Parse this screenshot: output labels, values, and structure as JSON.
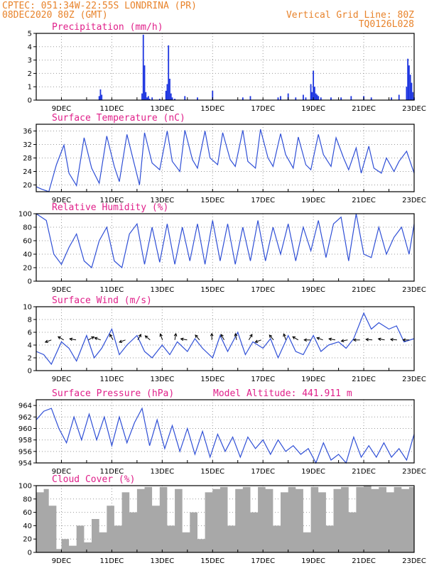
{
  "header": {
    "line1_left": "CPTEC:   051:34W-22:55S   LONDRINA (PR)",
    "line2_left": "08DEC2020 80Z (GMT)",
    "line2_right": "Vertical Grid Line: 80Z",
    "line3_right": "TQ0126L028"
  },
  "x_axis": {
    "day_min": 8.0,
    "day_max": 23.0,
    "ticks": [
      {
        "day": 9,
        "label": "9DEC"
      },
      {
        "day": 11,
        "label": "11DEC"
      },
      {
        "day": 13,
        "label": "13DEC"
      },
      {
        "day": 15,
        "label": "15DEC"
      },
      {
        "day": 17,
        "label": "17DEC"
      },
      {
        "day": 19,
        "label": "19DEC"
      },
      {
        "day": 21,
        "label": "21DEC"
      },
      {
        "day": 23,
        "label": "23DEC"
      }
    ]
  },
  "panels": [
    {
      "id": "precip",
      "title": "Precipitation (mm/h)",
      "ticks": [
        "0",
        "1",
        "2",
        "3",
        "4",
        "5"
      ]
    },
    {
      "id": "temp",
      "title": "Surface Temperature (nC)",
      "ticks": [
        "20",
        "24",
        "28",
        "32",
        "36"
      ]
    },
    {
      "id": "rh",
      "title": "Relative Humidity (%)",
      "ticks": [
        "0",
        "20",
        "40",
        "60",
        "80",
        "100"
      ]
    },
    {
      "id": "wind",
      "title": "Surface Wind (m/s)",
      "ticks": [
        "0",
        "2",
        "4",
        "6",
        "8",
        "10"
      ]
    },
    {
      "id": "pres",
      "title": "Surface Pressure (hPa)",
      "title2": "Model Altitude: 441.911 m",
      "ticks": [
        "954",
        "956",
        "958",
        "960",
        "962",
        "964"
      ]
    },
    {
      "id": "cloud",
      "title": "Cloud Cover (%)",
      "ticks": [
        "0",
        "20",
        "40",
        "60",
        "80",
        "100"
      ]
    }
  ],
  "colors": {
    "header": "#e8832b",
    "title": "#e0208a",
    "line": "#2f4fd6",
    "bar": "#1d35e0",
    "cloud": "#a8a8a8",
    "arrow": "#000000"
  },
  "chart_data": [
    {
      "type": "bar",
      "title": "Precipitation (mm/h)",
      "ylim": [
        0,
        5
      ],
      "series": [
        {
          "x": [
            10.5,
            10.55,
            10.6,
            12.2,
            12.25,
            12.3,
            12.35,
            12.4,
            12.45,
            12.5,
            12.6,
            12.9,
            13.15,
            13.2,
            13.25,
            13.3,
            13.35,
            13.4,
            13.5,
            13.9,
            14.4,
            15.0,
            16.2,
            16.5,
            17.6,
            17.7,
            18.0,
            18.3,
            18.6,
            18.7,
            18.9,
            18.95,
            19.0,
            19.05,
            19.1,
            19.15,
            19.2,
            19.3,
            19.7,
            20.1,
            20.5,
            21.0,
            21.3,
            22.1,
            22.4,
            22.7,
            22.75,
            22.8,
            22.85,
            22.9,
            22.95,
            23.0
          ],
          "y": [
            0.3,
            0.8,
            0.4,
            0.5,
            4.9,
            2.6,
            0.6,
            0.2,
            0.3,
            0.1,
            0.2,
            0.1,
            0.7,
            1.2,
            4.1,
            1.6,
            0.5,
            0.2,
            0.1,
            0.3,
            0.2,
            0.7,
            0.2,
            0.3,
            0.2,
            0.3,
            0.5,
            0.2,
            0.4,
            0.2,
            1.2,
            0.6,
            2.2,
            1.0,
            0.5,
            0.4,
            0.3,
            0.2,
            0.2,
            0.2,
            0.3,
            0.3,
            0.2,
            0.2,
            0.4,
            1.0,
            3.1,
            2.6,
            1.9,
            1.3,
            0.6,
            0.2
          ]
        }
      ]
    },
    {
      "type": "line",
      "title": "Surface Temperature (nC)",
      "ylim": [
        18,
        38
      ],
      "series": [
        {
          "x": [
            8.0,
            8.2,
            8.5,
            8.8,
            9.1,
            9.3,
            9.6,
            9.9,
            10.2,
            10.5,
            10.8,
            11.1,
            11.3,
            11.6,
            11.9,
            12.1,
            12.3,
            12.6,
            12.9,
            13.2,
            13.4,
            13.7,
            13.9,
            14.2,
            14.4,
            14.7,
            14.9,
            15.2,
            15.4,
            15.7,
            15.9,
            16.2,
            16.4,
            16.7,
            16.9,
            17.2,
            17.4,
            17.7,
            17.9,
            18.2,
            18.4,
            18.7,
            18.9,
            19.2,
            19.4,
            19.7,
            19.9,
            20.2,
            20.4,
            20.7,
            20.9,
            21.2,
            21.4,
            21.7,
            21.9,
            22.2,
            22.4,
            22.7,
            23.0
          ],
          "y": [
            19.5,
            18.8,
            18.0,
            26.0,
            31.8,
            23.5,
            19.8,
            34.0,
            25.0,
            20.5,
            34.5,
            25.5,
            21.0,
            35.0,
            26.0,
            20.0,
            35.5,
            26.5,
            24.5,
            36.0,
            27.0,
            24.0,
            36.2,
            27.5,
            25.0,
            36.0,
            28.0,
            26.0,
            35.5,
            27.5,
            25.5,
            36.2,
            27.0,
            25.0,
            36.5,
            28.0,
            25.5,
            35.2,
            29.0,
            25.0,
            34.2,
            26.0,
            24.5,
            35.0,
            29.0,
            25.5,
            34.0,
            28.0,
            24.5,
            31.0,
            23.5,
            31.5,
            25.0,
            23.5,
            28.0,
            24.0,
            27.0,
            30.0,
            23.5
          ]
        }
      ]
    },
    {
      "type": "line",
      "title": "Relative Humidity (%)",
      "ylim": [
        0,
        100
      ],
      "series": [
        {
          "x": [
            8.0,
            8.4,
            8.7,
            9.0,
            9.3,
            9.6,
            9.9,
            10.2,
            10.5,
            10.8,
            11.1,
            11.4,
            11.7,
            12.0,
            12.3,
            12.6,
            12.9,
            13.2,
            13.5,
            13.8,
            14.1,
            14.4,
            14.7,
            15.0,
            15.3,
            15.6,
            15.9,
            16.2,
            16.5,
            16.8,
            17.1,
            17.4,
            17.7,
            18.0,
            18.3,
            18.6,
            18.9,
            19.2,
            19.5,
            19.8,
            20.1,
            20.4,
            20.7,
            21.0,
            21.3,
            21.6,
            21.9,
            22.2,
            22.5,
            22.8,
            23.0
          ],
          "y": [
            100,
            90,
            40,
            25,
            50,
            70,
            30,
            20,
            60,
            80,
            30,
            20,
            70,
            85,
            25,
            80,
            28,
            85,
            25,
            80,
            30,
            85,
            25,
            90,
            30,
            85,
            25,
            80,
            30,
            90,
            30,
            80,
            40,
            85,
            30,
            80,
            45,
            90,
            35,
            85,
            95,
            30,
            100,
            40,
            35,
            80,
            40,
            65,
            80,
            40,
            85
          ]
        }
      ]
    },
    {
      "type": "line",
      "title": "Surface Wind (m/s)",
      "ylim": [
        0,
        10
      ],
      "series": [
        {
          "x": [
            8.0,
            8.3,
            8.6,
            9.0,
            9.3,
            9.6,
            10.0,
            10.3,
            10.6,
            11.0,
            11.3,
            11.6,
            12.0,
            12.3,
            12.6,
            13.0,
            13.3,
            13.6,
            14.0,
            14.3,
            14.6,
            15.0,
            15.3,
            15.6,
            16.0,
            16.3,
            16.6,
            17.0,
            17.3,
            17.6,
            18.0,
            18.3,
            18.6,
            19.0,
            19.3,
            19.6,
            20.0,
            20.3,
            20.6,
            21.0,
            21.3,
            21.6,
            22.0,
            22.3,
            22.6,
            23.0
          ],
          "y": [
            3.0,
            2.5,
            1.0,
            4.5,
            3.5,
            1.5,
            5.5,
            2.0,
            3.5,
            6.5,
            2.5,
            4.0,
            5.5,
            3.0,
            2.0,
            4.0,
            2.5,
            4.5,
            3.0,
            5.0,
            3.5,
            2.0,
            5.5,
            3.0,
            6.0,
            2.5,
            4.5,
            3.5,
            5.0,
            2.0,
            5.5,
            3.0,
            2.5,
            5.5,
            3.0,
            4.0,
            4.5,
            3.5,
            5.0,
            9.0,
            6.5,
            7.5,
            6.5,
            7.0,
            4.5,
            5.0
          ]
        }
      ]
    },
    {
      "type": "line",
      "title": "Surface Pressure (hPa)",
      "ylim": [
        954,
        965
      ],
      "series": [
        {
          "x": [
            8.0,
            8.3,
            8.6,
            8.9,
            9.2,
            9.5,
            9.8,
            10.1,
            10.4,
            10.7,
            11.0,
            11.3,
            11.6,
            11.9,
            12.2,
            12.5,
            12.8,
            13.1,
            13.4,
            13.7,
            14.0,
            14.3,
            14.6,
            14.9,
            15.2,
            15.5,
            15.8,
            16.1,
            16.4,
            16.7,
            17.0,
            17.3,
            17.6,
            17.9,
            18.2,
            18.5,
            18.8,
            19.1,
            19.4,
            19.7,
            20.0,
            20.3,
            20.6,
            20.9,
            21.2,
            21.5,
            21.8,
            22.1,
            22.4,
            22.7,
            23.0
          ],
          "y": [
            961.5,
            963.0,
            963.5,
            960.0,
            957.5,
            962.0,
            958.0,
            962.5,
            958.0,
            962.0,
            957.0,
            962.0,
            957.5,
            961.0,
            963.5,
            957.0,
            961.5,
            956.5,
            960.5,
            956.0,
            960.0,
            955.5,
            959.5,
            955.0,
            959.0,
            956.0,
            958.5,
            955.0,
            958.5,
            956.5,
            958.0,
            955.5,
            958.0,
            956.0,
            957.0,
            955.5,
            956.5,
            954.0,
            957.5,
            954.5,
            955.5,
            954.0,
            958.5,
            955.0,
            957.0,
            955.0,
            957.5,
            955.0,
            956.5,
            954.5,
            959.0
          ]
        }
      ]
    },
    {
      "type": "area",
      "title": "Cloud Cover (%)",
      "ylim": [
        0,
        100
      ],
      "series": [
        {
          "x": [
            8.0,
            8.3,
            8.5,
            8.8,
            9.0,
            9.3,
            9.6,
            9.9,
            10.2,
            10.5,
            10.8,
            11.1,
            11.4,
            11.7,
            12.0,
            12.3,
            12.6,
            12.9,
            13.2,
            13.5,
            13.8,
            14.1,
            14.4,
            14.7,
            15.0,
            15.3,
            15.6,
            15.9,
            16.2,
            16.5,
            16.8,
            17.1,
            17.4,
            17.7,
            18.0,
            18.3,
            18.6,
            18.9,
            19.2,
            19.5,
            19.8,
            20.1,
            20.4,
            20.7,
            21.0,
            21.3,
            21.6,
            21.9,
            22.2,
            22.5,
            22.8,
            23.0
          ],
          "y": [
            90,
            95,
            70,
            5,
            20,
            10,
            40,
            15,
            50,
            30,
            70,
            40,
            90,
            60,
            95,
            98,
            70,
            98,
            40,
            95,
            30,
            60,
            20,
            90,
            95,
            98,
            40,
            95,
            98,
            60,
            98,
            95,
            40,
            90,
            98,
            95,
            30,
            98,
            90,
            40,
            95,
            98,
            60,
            98,
            100,
            95,
            98,
            90,
            98,
            95,
            98,
            100
          ]
        }
      ]
    }
  ]
}
